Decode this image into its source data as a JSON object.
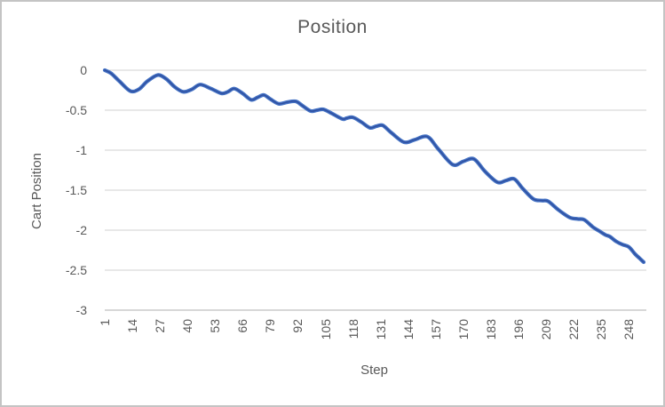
{
  "window": {
    "background": "#ffffff",
    "border_color": "#c4c4c4"
  },
  "chart_data": {
    "type": "line",
    "title": "Position",
    "xlabel": "Step",
    "ylabel": "Cart Position",
    "legend": "none",
    "grid": "horizontal-only",
    "xlim": [
      1,
      255
    ],
    "ylim": [
      -3,
      0
    ],
    "x_ticks": [
      1,
      14,
      27,
      40,
      53,
      66,
      79,
      92,
      105,
      118,
      131,
      144,
      157,
      170,
      183,
      196,
      209,
      222,
      235,
      248
    ],
    "y_ticks": [
      0,
      -0.5,
      -1,
      -1.5,
      -2,
      -2.5,
      -3
    ],
    "y_tick_labels": [
      "0",
      "-0.5",
      "-1",
      "-1.5",
      "-2",
      "-2.5",
      "-3"
    ],
    "colors": {
      "line": "#4472C4",
      "line_core": "#2E4E9E",
      "gridline": "#D9D9D9",
      "axis_line": "#BFBFBF",
      "text": "#595959"
    },
    "series": [
      {
        "name": "Cart Position",
        "points": [
          [
            1,
            0.0
          ],
          [
            4,
            -0.04
          ],
          [
            8,
            -0.14
          ],
          [
            13,
            -0.26
          ],
          [
            17,
            -0.24
          ],
          [
            21,
            -0.14
          ],
          [
            26,
            -0.06
          ],
          [
            30,
            -0.11
          ],
          [
            34,
            -0.21
          ],
          [
            38,
            -0.27
          ],
          [
            42,
            -0.24
          ],
          [
            46,
            -0.18
          ],
          [
            51,
            -0.23
          ],
          [
            56,
            -0.29
          ],
          [
            59,
            -0.27
          ],
          [
            62,
            -0.23
          ],
          [
            66,
            -0.29
          ],
          [
            70,
            -0.37
          ],
          [
            73,
            -0.34
          ],
          [
            76,
            -0.31
          ],
          [
            79,
            -0.36
          ],
          [
            83,
            -0.42
          ],
          [
            87,
            -0.4
          ],
          [
            91,
            -0.39
          ],
          [
            94,
            -0.44
          ],
          [
            98,
            -0.51
          ],
          [
            101,
            -0.5
          ],
          [
            104,
            -0.49
          ],
          [
            108,
            -0.54
          ],
          [
            113,
            -0.61
          ],
          [
            115,
            -0.6
          ],
          [
            118,
            -0.59
          ],
          [
            122,
            -0.65
          ],
          [
            126,
            -0.72
          ],
          [
            129,
            -0.7
          ],
          [
            132,
            -0.69
          ],
          [
            136,
            -0.78
          ],
          [
            142,
            -0.9
          ],
          [
            147,
            -0.87
          ],
          [
            153,
            -0.83
          ],
          [
            158,
            -0.98
          ],
          [
            165,
            -1.18
          ],
          [
            170,
            -1.14
          ],
          [
            175,
            -1.11
          ],
          [
            180,
            -1.26
          ],
          [
            186,
            -1.4
          ],
          [
            190,
            -1.38
          ],
          [
            194,
            -1.36
          ],
          [
            198,
            -1.48
          ],
          [
            203,
            -1.61
          ],
          [
            207,
            -1.63
          ],
          [
            210,
            -1.64
          ],
          [
            215,
            -1.75
          ],
          [
            220,
            -1.84
          ],
          [
            224,
            -1.86
          ],
          [
            227,
            -1.87
          ],
          [
            231,
            -1.96
          ],
          [
            234,
            -2.01
          ],
          [
            237,
            -2.06
          ],
          [
            239,
            -2.08
          ],
          [
            242,
            -2.14
          ],
          [
            245,
            -2.18
          ],
          [
            248,
            -2.21
          ],
          [
            251,
            -2.3
          ],
          [
            253,
            -2.35
          ],
          [
            255,
            -2.4
          ]
        ]
      }
    ]
  }
}
